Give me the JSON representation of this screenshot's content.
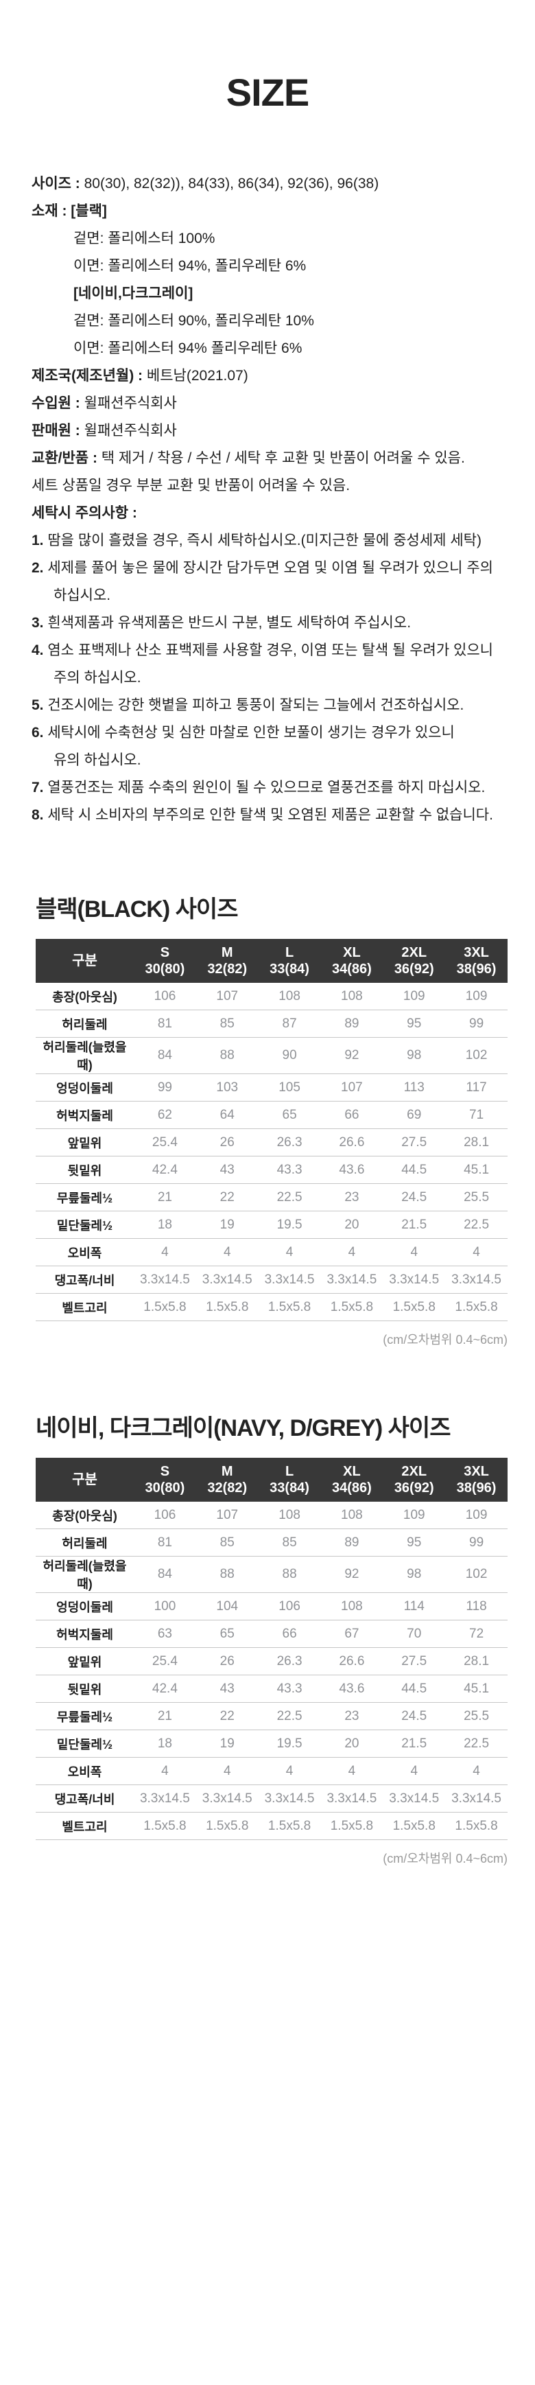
{
  "title": "SIZE",
  "info": {
    "lines": [
      {
        "label": "사이즈 : ",
        "text": "80(30), 82(32)), 84(33), 86(34), 92(36), 96(38)",
        "indent": false
      },
      {
        "label": "소재 : [블랙]",
        "text": "",
        "indent": false
      },
      {
        "label": "",
        "text": "겉면: 폴리에스터 100%",
        "indent": true
      },
      {
        "label": "",
        "text": "이면: 폴리에스터 94%, 폴리우레탄 6%",
        "indent": true
      },
      {
        "label": "[네이비,다크그레이]",
        "text": "",
        "indent": true
      },
      {
        "label": "",
        "text": "겉면: 폴리에스터 90%, 폴리우레탄 10%",
        "indent": true
      },
      {
        "label": "",
        "text": "이면: 폴리에스터 94% 폴리우레탄 6%",
        "indent": true
      },
      {
        "label": "제조국(제조년월) : ",
        "text": "베트남(2021.07)",
        "indent": false
      },
      {
        "label": "수입원 : ",
        "text": "윌패션주식회사",
        "indent": false
      },
      {
        "label": "판매원 : ",
        "text": "윌패션주식회사",
        "indent": false
      },
      {
        "label": "교환/반품 : ",
        "text": "택 제거 / 착용 / 수선 / 세탁 후 교환 및 반품이 어려울 수 있음.",
        "indent": false
      },
      {
        "label": "",
        "text": "세트 상품일 경우 부분 교환 및 반품이 어려울 수 있음.",
        "indent": false
      },
      {
        "label": "세탁시 주의사항 :",
        "text": "",
        "indent": false
      }
    ],
    "care_items": [
      {
        "num": "1.",
        "text": "땀을 많이 흘렸을 경우, 즉시 세탁하십시오.(미지근한 물에 중성세제 세탁)",
        "text2": ""
      },
      {
        "num": "2.",
        "text": "세제를 풀어 놓은 물에 장시간 담가두면 오염 및 이염 될 우려가 있으니 주의",
        "text2": "하십시오."
      },
      {
        "num": "3.",
        "text": "흰색제품과 유색제품은 반드시 구분, 별도 세탁하여 주십시오.",
        "text2": ""
      },
      {
        "num": "4.",
        "text": "염소 표백제나 산소 표백제를 사용할 경우, 이염 또는 탈색 될 우려가 있으니",
        "text2": "주의 하십시오."
      },
      {
        "num": "5.",
        "text": "건조시에는 강한 햇볕을 피하고 통풍이 잘되는 그늘에서 건조하십시오.",
        "text2": ""
      },
      {
        "num": "6.",
        "text": "세탁시에 수축현상 및 심한 마찰로 인한 보풀이 생기는 경우가 있으니",
        "text2": "유의 하십시오."
      },
      {
        "num": "7.",
        "text": "열풍건조는 제품 수축의 원인이 될 수 있으므로 열풍건조를 하지 마십시오.",
        "text2": ""
      },
      {
        "num": "8.",
        "text": "세탁 시 소비자의 부주의로 인한 탈색 및 오염된 제품은 교환할 수 없습니다.",
        "text2": ""
      }
    ]
  },
  "colors": {
    "table_header_bg": "#383838",
    "table_header_text": "#ffffff",
    "table_value_text": "#909296",
    "table_label_text": "#1e1e1e",
    "row_divider": "#c6c6c6",
    "note_text": "#9a9a9a"
  },
  "tables": [
    {
      "heading": "블랙(BLACK) 사이즈",
      "columns": [
        {
          "top": "구분",
          "bottom": ""
        },
        {
          "top": "S",
          "bottom": "30(80)"
        },
        {
          "top": "M",
          "bottom": "32(82)"
        },
        {
          "top": "L",
          "bottom": "33(84)"
        },
        {
          "top": "XL",
          "bottom": "34(86)"
        },
        {
          "top": "2XL",
          "bottom": "36(92)"
        },
        {
          "top": "3XL",
          "bottom": "38(96)"
        }
      ],
      "rows": [
        {
          "label": "총장(아웃심)",
          "values": [
            "106",
            "107",
            "108",
            "108",
            "109",
            "109"
          ]
        },
        {
          "label": "허리둘레",
          "values": [
            "81",
            "85",
            "87",
            "89",
            "95",
            "99"
          ]
        },
        {
          "label": "허리둘레(늘렸을때)",
          "values": [
            "84",
            "88",
            "90",
            "92",
            "98",
            "102"
          ]
        },
        {
          "label": "엉덩이둘레",
          "values": [
            "99",
            "103",
            "105",
            "107",
            "113",
            "117"
          ]
        },
        {
          "label": "허벅지둘레",
          "values": [
            "62",
            "64",
            "65",
            "66",
            "69",
            "71"
          ]
        },
        {
          "label": "앞밑위",
          "values": [
            "25.4",
            "26",
            "26.3",
            "26.6",
            "27.5",
            "28.1"
          ]
        },
        {
          "label": "뒷밑위",
          "values": [
            "42.4",
            "43",
            "43.3",
            "43.6",
            "44.5",
            "45.1"
          ]
        },
        {
          "label": "무릎둘레½",
          "values": [
            "21",
            "22",
            "22.5",
            "23",
            "24.5",
            "25.5"
          ]
        },
        {
          "label": "밑단둘레½",
          "values": [
            "18",
            "19",
            "19.5",
            "20",
            "21.5",
            "22.5"
          ]
        },
        {
          "label": "오비폭",
          "values": [
            "4",
            "4",
            "4",
            "4",
            "4",
            "4"
          ]
        },
        {
          "label": "댕고폭/너비",
          "values": [
            "3.3x14.5",
            "3.3x14.5",
            "3.3x14.5",
            "3.3x14.5",
            "3.3x14.5",
            "3.3x14.5"
          ]
        },
        {
          "label": "벨트고리",
          "values": [
            "1.5x5.8",
            "1.5x5.8",
            "1.5x5.8",
            "1.5x5.8",
            "1.5x5.8",
            "1.5x5.8"
          ]
        }
      ],
      "note": "(cm/오차범위 0.4~6cm)"
    },
    {
      "heading": "네이비, 다크그레이(NAVY, D/GREY) 사이즈",
      "columns": [
        {
          "top": "구분",
          "bottom": ""
        },
        {
          "top": "S",
          "bottom": "30(80)"
        },
        {
          "top": "M",
          "bottom": "32(82)"
        },
        {
          "top": "L",
          "bottom": "33(84)"
        },
        {
          "top": "XL",
          "bottom": "34(86)"
        },
        {
          "top": "2XL",
          "bottom": "36(92)"
        },
        {
          "top": "3XL",
          "bottom": "38(96)"
        }
      ],
      "rows": [
        {
          "label": "총장(아웃심)",
          "values": [
            "106",
            "107",
            "108",
            "108",
            "109",
            "109"
          ]
        },
        {
          "label": "허리둘레",
          "values": [
            "81",
            "85",
            "85",
            "89",
            "95",
            "99"
          ]
        },
        {
          "label": "허리둘레(늘렸을때)",
          "values": [
            "84",
            "88",
            "88",
            "92",
            "98",
            "102"
          ]
        },
        {
          "label": "엉덩이둘레",
          "values": [
            "100",
            "104",
            "106",
            "108",
            "114",
            "118"
          ]
        },
        {
          "label": "허벅지둘레",
          "values": [
            "63",
            "65",
            "66",
            "67",
            "70",
            "72"
          ]
        },
        {
          "label": "앞밑위",
          "values": [
            "25.4",
            "26",
            "26.3",
            "26.6",
            "27.5",
            "28.1"
          ]
        },
        {
          "label": "뒷밑위",
          "values": [
            "42.4",
            "43",
            "43.3",
            "43.6",
            "44.5",
            "45.1"
          ]
        },
        {
          "label": "무릎둘레½",
          "values": [
            "21",
            "22",
            "22.5",
            "23",
            "24.5",
            "25.5"
          ]
        },
        {
          "label": "밑단둘레½",
          "values": [
            "18",
            "19",
            "19.5",
            "20",
            "21.5",
            "22.5"
          ]
        },
        {
          "label": "오비폭",
          "values": [
            "4",
            "4",
            "4",
            "4",
            "4",
            "4"
          ]
        },
        {
          "label": "댕고폭/너비",
          "values": [
            "3.3x14.5",
            "3.3x14.5",
            "3.3x14.5",
            "3.3x14.5",
            "3.3x14.5",
            "3.3x14.5"
          ]
        },
        {
          "label": "벨트고리",
          "values": [
            "1.5x5.8",
            "1.5x5.8",
            "1.5x5.8",
            "1.5x5.8",
            "1.5x5.8",
            "1.5x5.8"
          ]
        }
      ],
      "note": "(cm/오차범위 0.4~6cm)"
    }
  ]
}
